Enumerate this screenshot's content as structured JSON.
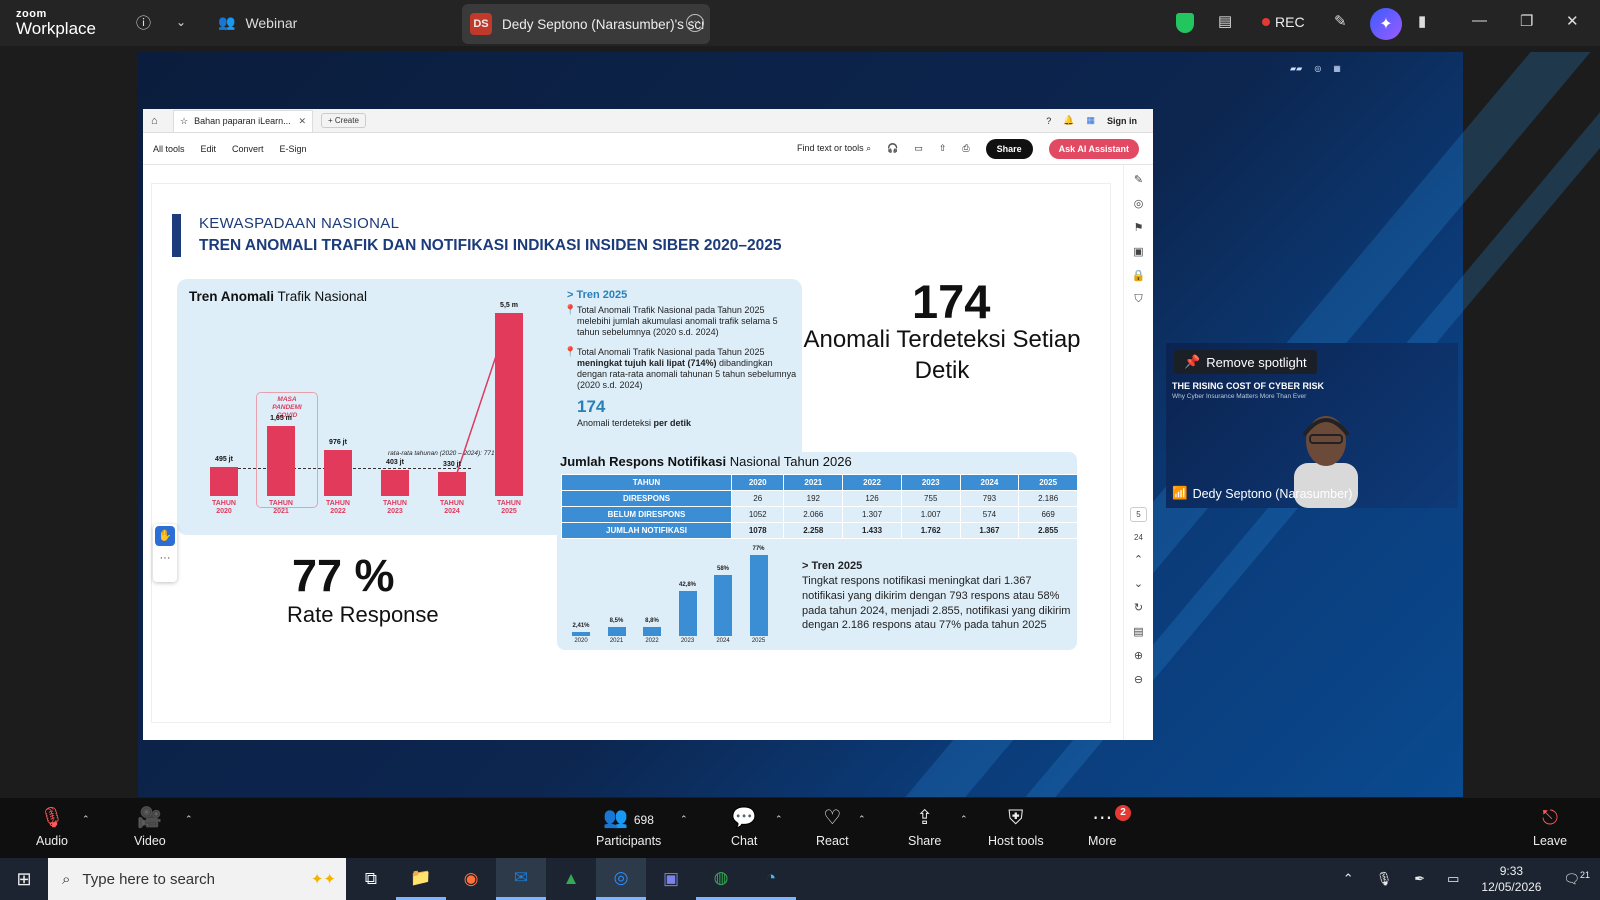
{
  "app": {
    "logo_top": "zoom",
    "logo_bottom": "Workplace",
    "webinar_label": "Webinar"
  },
  "share_tab": {
    "initials": "DS",
    "label": "Dedy Septono (Narasumber)'s sci"
  },
  "top_right": {
    "rec_label": "REC"
  },
  "pdf": {
    "tab_title": "Bahan paparan iLearn...",
    "create_label": "Create",
    "sign_in": "Sign in",
    "menu": [
      "All tools",
      "Edit",
      "Convert",
      "E-Sign"
    ],
    "find_placeholder": "Find text or tools",
    "share_label": "Share",
    "ask_ai_label": "Ask AI Assistant",
    "page_current": "5",
    "page_total": "24"
  },
  "slide": {
    "kicker": "KEWASPADAAN NASIONAL",
    "headline": "TREN ANOMALI TRAFIK DAN NOTIFIKASI INDIKASI INSIDEN SIBER 2020–2025",
    "panel1_title_bold": "Tren Anomali",
    "panel1_title_rest": " Trafik Nasional",
    "covid_label": "MASA PANDEMI COVID",
    "avg_label": "rata-rata tahunan (2020 – 2024): 771 jt",
    "trend_title": "> Tren 2025",
    "trend_item1": "Total Anomali Trafik Nasional pada Tahun 2025 melebihi jumlah akumulasi anomali trafik selama 5 tahun sebelumnya (2020 s.d. 2024)",
    "trend_item2_a": "Total Anomali Trafik Nasional pada Tahun 2025 ",
    "trend_item2_b": "meningkat tujuh kali lipat (714%)",
    "trend_item2_c": " dibandingkan dengan rata-rata anomali tahunan 5 tahun sebelumnya (2020 s.d. 2024)",
    "trend_num": "174",
    "trend_num_caption_a": "Anomali terdeteksi ",
    "trend_num_caption_b": "per detik",
    "big_number": "174",
    "big_sub": "Anomali Terdeteksi Setiap Detik",
    "panel2_title_bold": "Jumlah Respons Notifikasi",
    "panel2_title_rest": " Nasional Tahun 2026",
    "rate_value": "77 %",
    "rate_label": "Rate Response",
    "trend2_title": "> Tren 2025",
    "trend2_body": "Tingkat respons notifikasi meningkat dari 1.367 notifikasi yang dikirim dengan 793 respons atau 58% pada tahun 2024, menjadi 2.855, notifikasi yang dikirim dengan 2.186 respons atau 77% pada tahun 2025"
  },
  "table": {
    "header": [
      "TAHUN",
      "2020",
      "2021",
      "2022",
      "2023",
      "2024",
      "2025"
    ],
    "rows": [
      [
        "DIRESPONS",
        "26",
        "192",
        "126",
        "755",
        "793",
        "2.186"
      ],
      [
        "BELUM DIRESPONS",
        "1052",
        "2.066",
        "1.307",
        "1.007",
        "574",
        "669"
      ],
      [
        "JUMLAH NOTIFIKASI",
        "1078",
        "2.258",
        "1.433",
        "1.762",
        "1.367",
        "2.855"
      ]
    ]
  },
  "chart_data": [
    {
      "type": "bar",
      "title": "Tren Anomali Trafik Nasional",
      "categories": [
        "TAHUN 2020",
        "TAHUN 2021",
        "TAHUN 2022",
        "TAHUN 2023",
        "TAHUN 2024",
        "TAHUN 2025"
      ],
      "labels": [
        "495 jt",
        "1,65 m",
        "976 jt",
        "403 jt",
        "330 jt",
        "5,5 m"
      ],
      "values": [
        495,
        1650,
        976,
        403,
        330,
        5500
      ],
      "unit": "jt",
      "color": "#e23a5a"
    },
    {
      "type": "bar",
      "categories": [
        "2020",
        "2021",
        "2022",
        "2023",
        "2024",
        "2025"
      ],
      "labels": [
        "2,41%",
        "8,5%",
        "8,8%",
        "42,8%",
        "58%",
        "77%"
      ],
      "values": [
        2.41,
        8.5,
        8.8,
        42.8,
        58,
        77
      ],
      "unit": "%",
      "color": "#3b8ed4"
    }
  ],
  "speaker": {
    "remove_spotlight": "Remove spotlight",
    "video_title": "THE RISING COST OF CYBER RISK",
    "video_subtitle": "Why Cyber Insurance Matters More Than Ever",
    "name": "Dedy Septono (Narasumber)"
  },
  "controls": {
    "audio": "Audio",
    "video": "Video",
    "participants": "Participants",
    "participants_count": "698",
    "chat": "Chat",
    "react": "React",
    "share": "Share",
    "host_tools": "Host tools",
    "more": "More",
    "more_badge": "2",
    "leave": "Leave"
  },
  "taskbar": {
    "search_placeholder": "Type here to search",
    "time": "9:33",
    "date": "12/05/2026",
    "notif": "21"
  }
}
